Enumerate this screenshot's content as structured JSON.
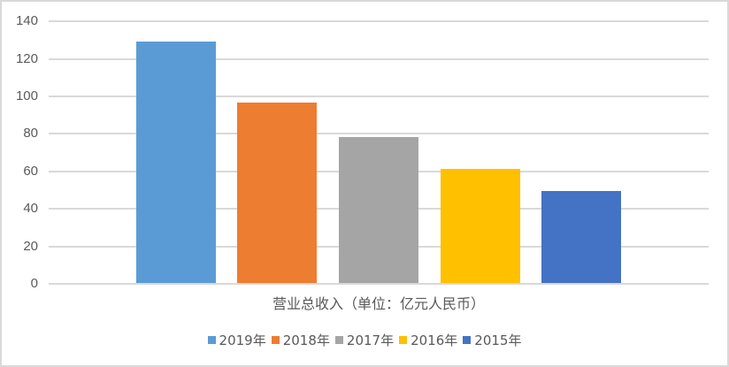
{
  "chart_data": {
    "type": "bar",
    "title": "",
    "xlabel": "营业总收入（单位：亿元人民币）",
    "ylabel": "",
    "categories": [
      "2019年",
      "2018年",
      "2017年",
      "2016年",
      "2015年"
    ],
    "series": [
      {
        "name": "2019年",
        "values": [
          129
        ],
        "color": "#5b9bd5"
      },
      {
        "name": "2018年",
        "values": [
          96.2
        ],
        "color": "#ed7d31"
      },
      {
        "name": "2017年",
        "values": [
          77.6
        ],
        "color": "#a5a5a5"
      },
      {
        "name": "2016年",
        "values": [
          61
        ],
        "color": "#ffc000"
      },
      {
        "name": "2015年",
        "values": [
          49
        ],
        "color": "#4472c4"
      }
    ],
    "values": [
      129,
      96.2,
      77.6,
      61,
      49
    ],
    "ylim": [
      0,
      140
    ],
    "yticks": [
      0,
      20,
      40,
      60,
      80,
      100,
      120,
      140
    ],
    "grid": true,
    "legend_position": "bottom"
  },
  "axis": {
    "yticks": [
      "140",
      "120",
      "100",
      "80",
      "60",
      "40",
      "20",
      "0"
    ],
    "xlabel": "营业总收入（单位：亿元人民币）"
  },
  "legend": [
    {
      "label": "2019年",
      "color": "#5b9bd5"
    },
    {
      "label": "2018年",
      "color": "#ed7d31"
    },
    {
      "label": "2017年",
      "color": "#a5a5a5"
    },
    {
      "label": "2016年",
      "color": "#ffc000"
    },
    {
      "label": "2015年",
      "color": "#4472c4"
    }
  ]
}
